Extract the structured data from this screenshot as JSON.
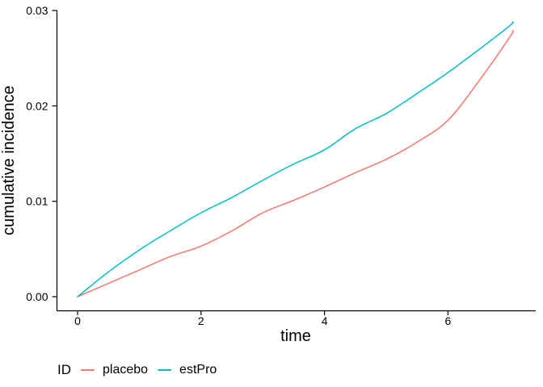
{
  "figure": {
    "background_color": "#ffffff",
    "text_color": "#000000",
    "axis_color": "#000000"
  },
  "chart_data": {
    "type": "line",
    "title": "",
    "xlabel": "time",
    "ylabel": "cumulative incidence",
    "xlim": [
      -0.35,
      7.45
    ],
    "ylim": [
      0,
      0.03
    ],
    "grid": false,
    "x_ticks": {
      "values": [
        0,
        2,
        4,
        6
      ],
      "labels": [
        "0",
        "2",
        "4",
        "6"
      ]
    },
    "y_ticks": {
      "values": [
        0,
        0.01,
        0.02,
        0.03
      ],
      "labels": [
        "0.00",
        "0.01",
        "0.02",
        "0.03"
      ]
    },
    "legend": {
      "title": "ID",
      "position": "bottom"
    },
    "x": [
      0,
      0.5,
      1,
      1.5,
      2,
      2.5,
      3,
      3.5,
      4,
      4.5,
      5,
      5.5,
      6,
      6.5,
      7,
      7.05
    ],
    "series": [
      {
        "name": "placebo",
        "color": "#F8766D",
        "values": [
          0,
          0.0014,
          0.0028,
          0.0042,
          0.0053,
          0.0069,
          0.0088,
          0.0101,
          0.0115,
          0.013,
          0.0144,
          0.0162,
          0.0185,
          0.0226,
          0.0272,
          0.0279
        ]
      },
      {
        "name": "estPro",
        "color": "#00BFC4",
        "values": [
          0,
          0.0026,
          0.0049,
          0.0069,
          0.0088,
          0.0104,
          0.0122,
          0.0139,
          0.0154,
          0.0176,
          0.0192,
          0.0213,
          0.0235,
          0.0259,
          0.0284,
          0.0288
        ]
      }
    ]
  }
}
